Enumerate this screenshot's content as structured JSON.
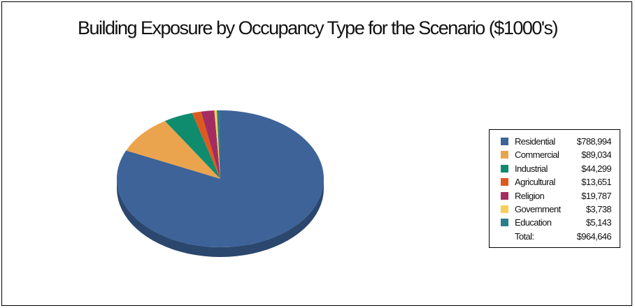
{
  "chart_data": {
    "type": "pie",
    "title": "Building Exposure by Occupancy Type for the Scenario ($1000's)",
    "legend_position": "right",
    "slices": [
      {
        "name": "Residential",
        "value": 788994,
        "label": "$788,994",
        "color": "#3d6399"
      },
      {
        "name": "Commercial",
        "value": 89034,
        "label": "$89,034",
        "color": "#eba44e"
      },
      {
        "name": "Industrial",
        "value": 44299,
        "label": "$44,299",
        "color": "#0f8c6e"
      },
      {
        "name": "Agricultural",
        "value": 13651,
        "label": "$13,651",
        "color": "#dd5a1f"
      },
      {
        "name": "Religion",
        "value": 19787,
        "label": "$19,787",
        "color": "#a32d60"
      },
      {
        "name": "Government",
        "value": 3738,
        "label": "$3,738",
        "color": "#f5cf5a"
      },
      {
        "name": "Education",
        "value": 5143,
        "label": "$5,143",
        "color": "#2b7d89"
      }
    ],
    "total_label": "Total:",
    "total_value": "$964,646"
  }
}
